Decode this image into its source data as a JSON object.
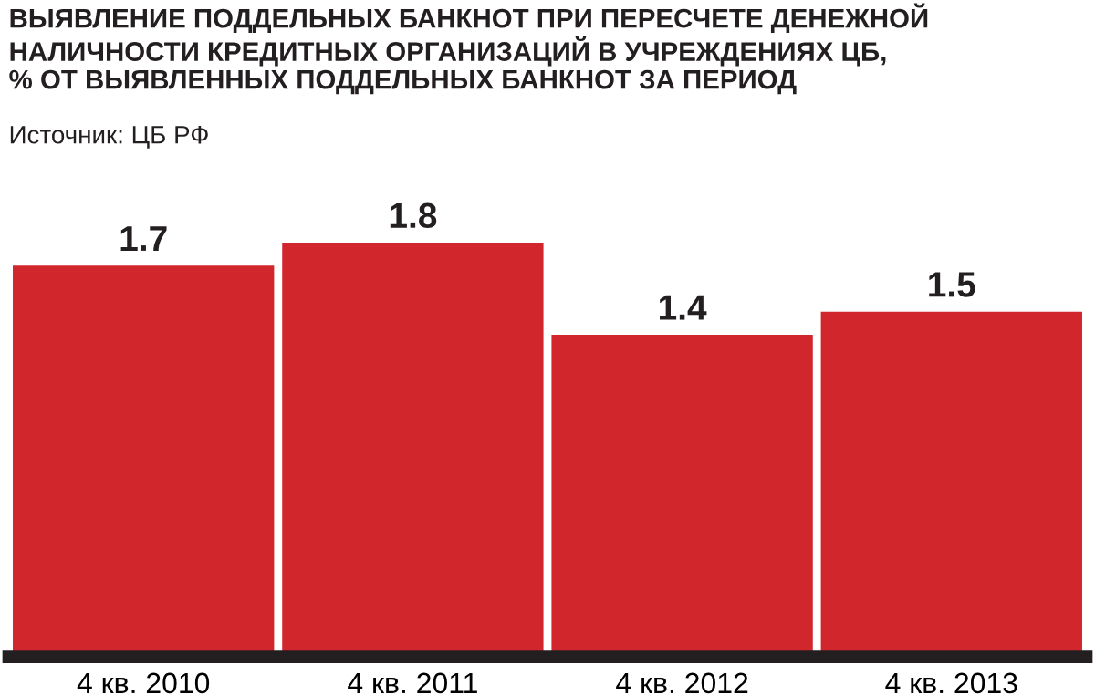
{
  "chart_data": {
    "type": "bar",
    "title": "ВЫЯВЛЕНИЕ ПОДДЕЛЬНЫХ БАНКНОТ ПРИ ПЕРЕСЧЕТЕ ДЕНЕЖНОЙ\nНАЛИЧНОСТИ КРЕДИТНЫХ ОРГАНИЗАЦИЙ В УЧРЕЖДЕНИЯХ ЦБ,\n% ОТ ВЫЯВЛЕННЫХ ПОДДЕЛЬНЫХ БАНКНОТ ЗА ПЕРИОД",
    "annotations": [
      "Источник: ЦБ РФ"
    ],
    "categories": [
      "4 кв. 2010",
      "4 кв. 2011",
      "4 кв. 2012",
      "4 кв. 2013"
    ],
    "values": [
      1.7,
      1.8,
      1.4,
      1.5
    ],
    "color": "#d0262c",
    "data_labels": true,
    "grid": false,
    "legend": false
  }
}
